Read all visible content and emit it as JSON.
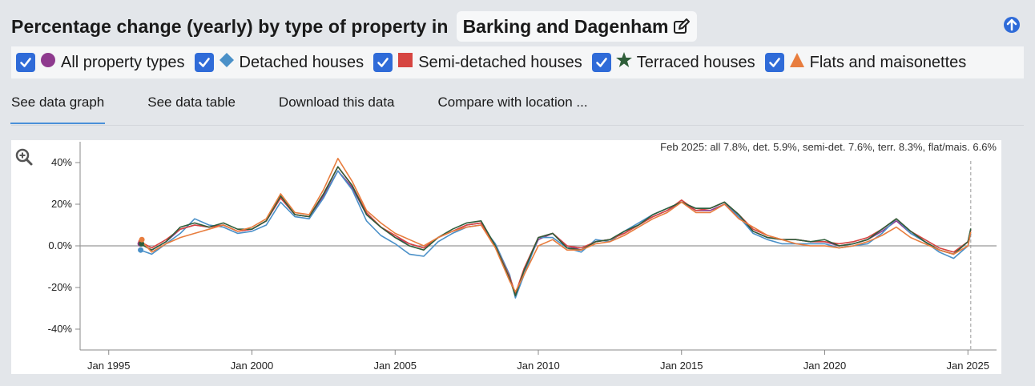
{
  "header": {
    "title": "Percentage change (yearly) by type of property in",
    "location": "Barking and Dagenham",
    "edit_icon": "edit-icon",
    "up_icon": "arrow-up-circle-icon"
  },
  "legend": {
    "items": [
      {
        "label": "All property types",
        "color": "#8e3a8e",
        "marker": "circle",
        "checked": true
      },
      {
        "label": "Detached houses",
        "color": "#4a90c8",
        "marker": "diamond",
        "checked": true
      },
      {
        "label": "Semi-detached houses",
        "color": "#d64541",
        "marker": "square",
        "checked": true
      },
      {
        "label": "Terraced houses",
        "color": "#2f5e3a",
        "marker": "star",
        "checked": true
      },
      {
        "label": "Flats and maisonettes",
        "color": "#e87d3e",
        "marker": "triangle",
        "checked": true
      }
    ]
  },
  "tabs": [
    {
      "label": "See data graph",
      "active": true
    },
    {
      "label": "See data table",
      "active": false
    },
    {
      "label": "Download this data",
      "active": false
    },
    {
      "label": "Compare with location ...",
      "active": false
    }
  ],
  "chart_summary": "Feb 2025: all 7.8%, det. 5.9%, semi-det. 7.6%, terr. 8.3%, flat/mais. 6.6%",
  "chart_data": {
    "type": "line",
    "title": "",
    "xlabel": "",
    "ylabel": "",
    "x_ticks": [
      "Jan 1995",
      "Jan 2000",
      "Jan 2005",
      "Jan 2010",
      "Jan 2015",
      "Jan 2020",
      "Jan 2025"
    ],
    "y_ticks": [
      "40%",
      "20%",
      "0.0%",
      "-20%",
      "-40%"
    ],
    "xlim": [
      1994.0,
      2026.0
    ],
    "ylim": [
      -50,
      50
    ],
    "grid": false,
    "x_years": [
      1996.1,
      1996.5,
      1997.0,
      1997.5,
      1998.0,
      1998.5,
      1999.0,
      1999.5,
      2000.0,
      2000.5,
      2001.0,
      2001.5,
      2002.0,
      2002.5,
      2003.0,
      2003.5,
      2004.0,
      2004.5,
      2005.0,
      2005.5,
      2006.0,
      2006.5,
      2007.0,
      2007.5,
      2008.0,
      2008.5,
      2009.0,
      2009.2,
      2009.5,
      2010.0,
      2010.5,
      2011.0,
      2011.5,
      2012.0,
      2012.5,
      2013.0,
      2013.5,
      2014.0,
      2014.5,
      2015.0,
      2015.5,
      2016.0,
      2016.5,
      2017.0,
      2017.5,
      2018.0,
      2018.5,
      2019.0,
      2019.5,
      2020.0,
      2020.5,
      2021.0,
      2021.5,
      2022.0,
      2022.5,
      2023.0,
      2023.5,
      2024.0,
      2024.5,
      2025.0,
      2025.1
    ],
    "series": [
      {
        "name": "All property types",
        "color": "#8e3a8e",
        "values": [
          1,
          -2,
          2,
          8,
          10,
          9,
          10,
          7,
          8,
          12,
          23,
          15,
          14,
          24,
          36,
          28,
          15,
          9,
          4,
          1,
          -1,
          4,
          7,
          10,
          11,
          0,
          -15,
          -23,
          -12,
          3,
          6,
          0,
          -2,
          2,
          3,
          6,
          10,
          14,
          17,
          21,
          17,
          17,
          20,
          14,
          7,
          4,
          3,
          3,
          2,
          2,
          0,
          1,
          3,
          7,
          12,
          6,
          2,
          -2,
          -4,
          2,
          7.8
        ]
      },
      {
        "name": "Detached houses",
        "color": "#4a90c8",
        "values": [
          -2,
          -4,
          1,
          6,
          13,
          10,
          9,
          6,
          7,
          10,
          21,
          14,
          13,
          23,
          36,
          27,
          12,
          5,
          1,
          -4,
          -5,
          2,
          6,
          9,
          10,
          1,
          -14,
          -25,
          -14,
          4,
          4,
          -1,
          -3,
          3,
          2,
          7,
          11,
          15,
          18,
          21,
          18,
          18,
          21,
          14,
          6,
          3,
          1,
          1,
          1,
          1,
          -1,
          0,
          1,
          6,
          13,
          6,
          2,
          -3,
          -6,
          0,
          5.9
        ]
      },
      {
        "name": "Semi-detached houses",
        "color": "#d64541",
        "values": [
          2,
          -1,
          3,
          8,
          10,
          9,
          10,
          7,
          8,
          12,
          23,
          15,
          14,
          25,
          38,
          29,
          16,
          9,
          5,
          1,
          -1,
          4,
          7,
          10,
          11,
          0,
          -15,
          -23,
          -11,
          4,
          6,
          0,
          -1,
          2,
          3,
          6,
          10,
          14,
          17,
          22,
          17,
          18,
          21,
          15,
          8,
          5,
          3,
          3,
          2,
          2,
          1,
          2,
          4,
          8,
          13,
          7,
          3,
          -1,
          -3,
          2,
          7.6
        ]
      },
      {
        "name": "Terraced houses",
        "color": "#2f5e3a",
        "values": [
          1,
          -2,
          2,
          9,
          11,
          9,
          11,
          8,
          8,
          12,
          24,
          15,
          14,
          25,
          38,
          29,
          15,
          9,
          4,
          0,
          -2,
          4,
          8,
          11,
          12,
          0,
          -16,
          -24,
          -12,
          4,
          6,
          -1,
          -2,
          2,
          3,
          7,
          10,
          15,
          18,
          21,
          18,
          18,
          21,
          15,
          7,
          4,
          3,
          3,
          2,
          3,
          0,
          1,
          3,
          8,
          13,
          7,
          2,
          -2,
          -4,
          2,
          8.3
        ]
      },
      {
        "name": "Flats and maisonettes",
        "color": "#e87d3e",
        "values": [
          3,
          -3,
          1,
          4,
          6,
          8,
          10,
          7,
          9,
          13,
          25,
          16,
          15,
          27,
          42,
          31,
          17,
          11,
          6,
          3,
          0,
          4,
          7,
          9,
          10,
          -1,
          -17,
          -22,
          -14,
          0,
          3,
          -2,
          -2,
          1,
          2,
          5,
          9,
          13,
          16,
          21,
          16,
          16,
          20,
          13,
          9,
          5,
          3,
          1,
          0,
          0,
          -1,
          0,
          2,
          5,
          9,
          4,
          1,
          -2,
          -4,
          0,
          6.6
        ]
      }
    ]
  }
}
